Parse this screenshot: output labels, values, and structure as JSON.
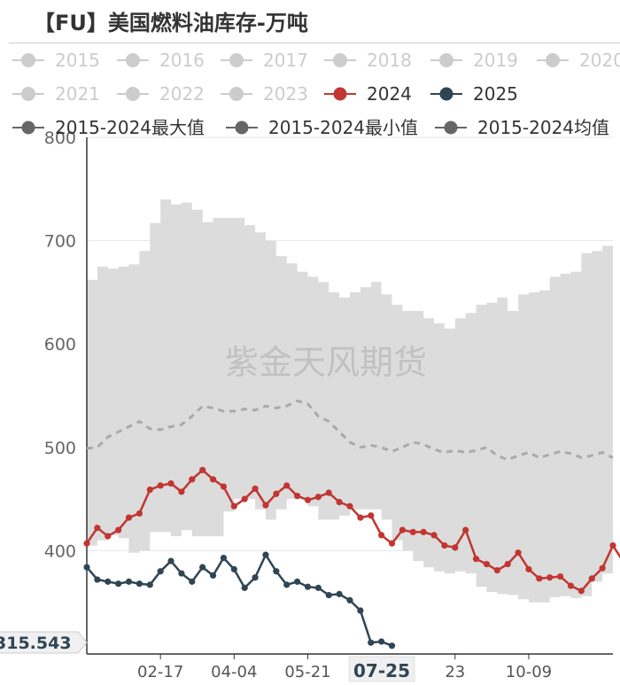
{
  "title": "【FU】美国燃料油库存-万吨",
  "watermark": "紫金天风期货",
  "chart_data": {
    "type": "line",
    "ylim": [
      300,
      800
    ],
    "yticks": [
      400,
      500,
      600,
      700,
      800
    ],
    "xlim": [
      0,
      50
    ],
    "x_ticks": [
      {
        "x": 7,
        "label": "02-17"
      },
      {
        "x": 14,
        "label": "04-04"
      },
      {
        "x": 21,
        "label": "05-21"
      },
      {
        "x": 35,
        "label": "23"
      },
      {
        "x": 42,
        "label": "10-09"
      }
    ],
    "axis_pointer": {
      "x_label": "07-25",
      "y_label": "315.543"
    },
    "legend": [
      {
        "name": "2015",
        "color": "#cccccc",
        "active": false
      },
      {
        "name": "2016",
        "color": "#cccccc",
        "active": false
      },
      {
        "name": "2017",
        "color": "#cccccc",
        "active": false
      },
      {
        "name": "2018",
        "color": "#cccccc",
        "active": false
      },
      {
        "name": "2019",
        "color": "#cccccc",
        "active": false
      },
      {
        "name": "2020",
        "color": "#cccccc",
        "active": false
      },
      {
        "name": "2021",
        "color": "#cccccc",
        "active": false
      },
      {
        "name": "2022",
        "color": "#cccccc",
        "active": false
      },
      {
        "name": "2023",
        "color": "#cccccc",
        "active": false
      },
      {
        "name": "2024",
        "color": "#c23531",
        "active": true
      },
      {
        "name": "2025",
        "color": "#2f4554",
        "active": true
      },
      {
        "name": "2015-2024最大值",
        "color": "#666666",
        "active": true
      },
      {
        "name": "2015-2024最小值",
        "color": "#666666",
        "active": true
      },
      {
        "name": "2015-2024均值",
        "color": "#666666",
        "active": true
      }
    ],
    "series": [
      {
        "name": "2015-2024最大值",
        "style": "band-top",
        "values": [
          662,
          675,
          673,
          675,
          677,
          690,
          717,
          740,
          735,
          737,
          730,
          718,
          722,
          722,
          722,
          715,
          708,
          700,
          685,
          678,
          670,
          665,
          660,
          650,
          645,
          650,
          655,
          660,
          648,
          638,
          632,
          632,
          625,
          620,
          615,
          625,
          630,
          638,
          640,
          645,
          632,
          648,
          650,
          652,
          665,
          668,
          670,
          688,
          690,
          695,
          670
        ]
      },
      {
        "name": "2015-2024最小值",
        "style": "band-bottom",
        "values": [
          405,
          410,
          415,
          412,
          398,
          400,
          418,
          418,
          414,
          420,
          414,
          414,
          414,
          438,
          450,
          450,
          440,
          430,
          440,
          450,
          450,
          443,
          430,
          430,
          434,
          440,
          440,
          440,
          430,
          410,
          400,
          390,
          384,
          380,
          378,
          380,
          378,
          365,
          360,
          358,
          357,
          353,
          350,
          350,
          355,
          356,
          354,
          356,
          370,
          378,
          380
        ]
      },
      {
        "name": "2015-2024均值",
        "color": "#aaaaaa",
        "dashed": true,
        "values": [
          499,
          500,
          510,
          515,
          520,
          525,
          518,
          517,
          520,
          522,
          530,
          540,
          538,
          535,
          535,
          537,
          536,
          540,
          538,
          540,
          545,
          542,
          530,
          525,
          515,
          505,
          500,
          502,
          500,
          496,
          500,
          505,
          503,
          498,
          495,
          497,
          495,
          497,
          500,
          492,
          488,
          492,
          495,
          490,
          493,
          496,
          494,
          490,
          492,
          495,
          490
        ]
      },
      {
        "name": "2024",
        "color": "#c23531",
        "values": [
          407,
          422,
          414,
          420,
          432,
          436,
          459,
          463,
          465,
          457,
          469,
          478,
          469,
          462,
          443,
          450,
          460,
          444,
          455,
          463,
          453,
          449,
          452,
          456,
          447,
          443,
          432,
          434,
          415,
          407,
          420,
          418,
          418,
          415,
          405,
          403,
          420,
          392,
          387,
          381,
          387,
          398,
          382,
          373,
          374,
          375,
          366,
          361,
          373,
          383,
          405,
          389
        ]
      },
      {
        "name": "2025",
        "color": "#2f4554",
        "values": [
          384,
          372,
          370,
          368,
          370,
          368,
          367,
          380,
          390,
          378,
          370,
          384,
          376,
          393,
          382,
          364,
          374,
          396,
          380,
          367,
          370,
          365,
          364,
          357,
          358,
          352,
          342,
          311,
          312,
          308
        ]
      }
    ]
  }
}
